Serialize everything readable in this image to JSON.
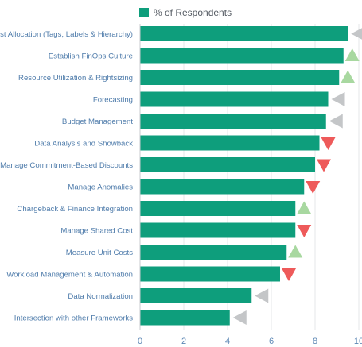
{
  "chart_data": {
    "type": "bar",
    "orientation": "horizontal",
    "legend": {
      "position": "top",
      "entries": [
        "% of Respondents"
      ]
    },
    "series": [
      {
        "name": "% of Respondents",
        "color": "#0e9e7c"
      }
    ],
    "categories": [
      "Cost Allocation (Tags, Labels & Hierarchy)",
      "Establish FinOps Culture",
      "Resource Utilization & Rightsizing",
      "Forecasting",
      "Budget Management",
      "Data Analysis and Showback",
      "Manage Commitment-Based Discounts",
      "Manage Anomalies",
      "Chargeback & Finance Integration",
      "Manage Shared Cost",
      "Measure Unit Costs",
      "Workload Management & Automation",
      "Data Normalization",
      "Intersection with other Frameworks"
    ],
    "values": [
      9.5,
      9.3,
      9.1,
      8.6,
      8.5,
      8.2,
      8.0,
      7.5,
      7.1,
      7.1,
      6.7,
      6.4,
      5.1,
      4.1
    ],
    "trend_markers": [
      "left",
      "up",
      "up",
      "left",
      "left",
      "down",
      "down",
      "down",
      "up",
      "down",
      "up",
      "down",
      "left",
      "left"
    ],
    "marker_colors": {
      "up": "#a8d8a0",
      "down": "#ee5a5a",
      "left": "#c4c6c8"
    },
    "xlim": [
      0,
      10
    ],
    "xticks": [
      "0",
      "2",
      "4",
      "6",
      "8",
      "10"
    ],
    "grid": true,
    "title": "",
    "xlabel": "",
    "ylabel": ""
  }
}
